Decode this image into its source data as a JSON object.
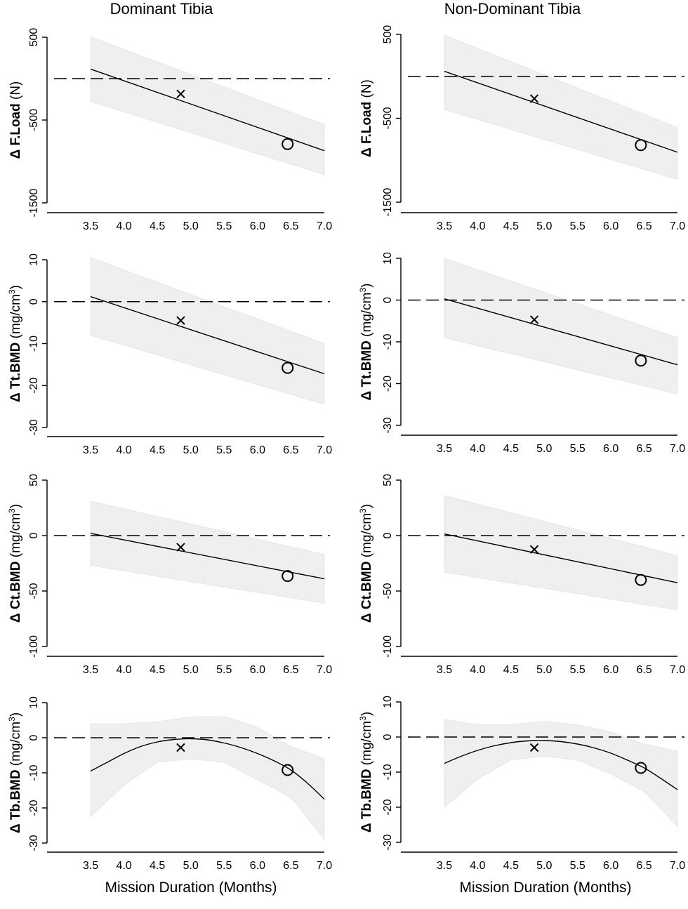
{
  "column_titles": [
    "Dominant Tibia",
    "Non-Dominant Tibia"
  ],
  "x_axis_label": "Mission Duration (Months)",
  "chart_data": [
    {
      "type": "line",
      "row": 0,
      "col": 0,
      "column": "Dominant Tibia",
      "ylabel_prefix": "Δ ",
      "ylabel_bold": "F.Load",
      "ylabel_unit": " (N)",
      "ylabel_sup": "",
      "xlim": [
        3.5,
        7.0
      ],
      "xticks": [
        "3.5",
        "4.0",
        "4.5",
        "5.0",
        "5.5",
        "6.0",
        "6.5",
        "7.0"
      ],
      "ylim": [
        -1500,
        500
      ],
      "yticks": [
        500,
        -500,
        -1500
      ],
      "yticklabels": [
        "500",
        "-500",
        "-1500"
      ],
      "reference_line_y": 0,
      "fit": {
        "shape": "linear",
        "x": [
          3.5,
          7.0
        ],
        "y": [
          115,
          -870
        ]
      },
      "band": {
        "x": [
          3.5,
          7.0
        ],
        "upper": [
          505,
          -555
        ],
        "lower": [
          -275,
          -1160
        ]
      },
      "points": [
        {
          "marker": "x",
          "x": 4.85,
          "y": -185
        },
        {
          "marker": "o",
          "x": 6.45,
          "y": -790
        }
      ]
    },
    {
      "type": "line",
      "row": 0,
      "col": 1,
      "column": "Non-Dominant Tibia",
      "ylabel_prefix": "Δ ",
      "ylabel_bold": "F.Load",
      "ylabel_unit": " (N)",
      "ylabel_sup": "",
      "xlim": [
        3.5,
        7.0
      ],
      "xticks": [
        "3.5",
        "4.0",
        "4.5",
        "5.0",
        "5.5",
        "6.0",
        "6.5",
        "7.0"
      ],
      "ylim": [
        -1500,
        500
      ],
      "yticks": [
        500,
        -500,
        -1500
      ],
      "yticklabels": [
        "500",
        "-500",
        "-1500"
      ],
      "reference_line_y": 0,
      "fit": {
        "shape": "linear",
        "x": [
          3.5,
          7.0
        ],
        "y": [
          60,
          -905
        ]
      },
      "band": {
        "x": [
          3.5,
          7.0
        ],
        "upper": [
          490,
          -610
        ],
        "lower": [
          -395,
          -1230
        ]
      },
      "points": [
        {
          "marker": "x",
          "x": 4.85,
          "y": -265
        },
        {
          "marker": "o",
          "x": 6.45,
          "y": -820
        }
      ]
    },
    {
      "type": "line",
      "row": 1,
      "col": 0,
      "column": "Dominant Tibia",
      "ylabel_prefix": "Δ ",
      "ylabel_bold": "Tt.BMD",
      "ylabel_unit": " (mg/cm",
      "ylabel_sup": "3",
      "xlim": [
        3.5,
        7.0
      ],
      "xticks": [
        "3.5",
        "4.0",
        "4.5",
        "5.0",
        "5.5",
        "6.0",
        "6.5",
        "7.0"
      ],
      "ylim": [
        -30,
        10
      ],
      "yticks": [
        10,
        0,
        -10,
        -20,
        -30
      ],
      "yticklabels": [
        "10",
        "0",
        "-10",
        "-20",
        "-30"
      ],
      "reference_line_y": 0,
      "fit": {
        "shape": "linear",
        "x": [
          3.5,
          7.0
        ],
        "y": [
          1.2,
          -17.2
        ]
      },
      "band": {
        "x": [
          3.5,
          7.0
        ],
        "upper": [
          10.5,
          -10.0
        ],
        "lower": [
          -8.0,
          -24.5
        ]
      },
      "points": [
        {
          "marker": "x",
          "x": 4.85,
          "y": -4.5
        },
        {
          "marker": "o",
          "x": 6.45,
          "y": -15.8
        }
      ]
    },
    {
      "type": "line",
      "row": 1,
      "col": 1,
      "column": "Non-Dominant Tibia",
      "ylabel_prefix": "Δ ",
      "ylabel_bold": "Tt.BMD",
      "ylabel_unit": " (mg/cm",
      "ylabel_sup": "3",
      "xlim": [
        3.5,
        7.0
      ],
      "xticks": [
        "3.5",
        "4.0",
        "4.5",
        "5.0",
        "5.5",
        "6.0",
        "6.5",
        "7.0"
      ],
      "ylim": [
        -30,
        10
      ],
      "yticks": [
        10,
        0,
        -10,
        -20,
        -30
      ],
      "yticklabels": [
        "10",
        "0",
        "-10",
        "-20",
        "-30"
      ],
      "reference_line_y": 0,
      "fit": {
        "shape": "linear",
        "x": [
          3.5,
          7.0
        ],
        "y": [
          0.3,
          -15.5
        ]
      },
      "band": {
        "x": [
          3.5,
          7.0
        ],
        "upper": [
          10.0,
          -9.0
        ],
        "lower": [
          -9.0,
          -22.5
        ]
      },
      "points": [
        {
          "marker": "x",
          "x": 4.85,
          "y": -4.7
        },
        {
          "marker": "o",
          "x": 6.45,
          "y": -14.5
        }
      ]
    },
    {
      "type": "line",
      "row": 2,
      "col": 0,
      "column": "Dominant Tibia",
      "ylabel_prefix": "Δ ",
      "ylabel_bold": "Ct.BMD",
      "ylabel_unit": " (mg/cm",
      "ylabel_sup": "3",
      "xlim": [
        3.5,
        7.0
      ],
      "xticks": [
        "3.5",
        "4.0",
        "4.5",
        "5.0",
        "5.5",
        "6.0",
        "6.5",
        "7.0"
      ],
      "ylim": [
        -100,
        50
      ],
      "yticks": [
        50,
        0,
        -50,
        -100
      ],
      "yticklabels": [
        "50",
        "0",
        "-50",
        "-100"
      ],
      "reference_line_y": 0,
      "fit": {
        "shape": "linear",
        "x": [
          3.5,
          7.0
        ],
        "y": [
          2.0,
          -39.0
        ]
      },
      "band": {
        "x": [
          3.5,
          7.0
        ],
        "upper": [
          31.0,
          -17.0
        ],
        "lower": [
          -27.0,
          -61.0
        ]
      },
      "points": [
        {
          "marker": "x",
          "x": 4.85,
          "y": -10.5
        },
        {
          "marker": "o",
          "x": 6.45,
          "y": -36.5
        }
      ]
    },
    {
      "type": "line",
      "row": 2,
      "col": 1,
      "column": "Non-Dominant Tibia",
      "ylabel_prefix": "Δ ",
      "ylabel_bold": "Ct.BMD",
      "ylabel_unit": " (mg/cm",
      "ylabel_sup": "3",
      "xlim": [
        3.5,
        7.0
      ],
      "xticks": [
        "3.5",
        "4.0",
        "4.5",
        "5.0",
        "5.5",
        "6.0",
        "6.5",
        "7.0"
      ],
      "ylim": [
        -100,
        50
      ],
      "yticks": [
        50,
        0,
        -50,
        -100
      ],
      "yticklabels": [
        "50",
        "0",
        "-50",
        "-100"
      ],
      "reference_line_y": 0,
      "fit": {
        "shape": "linear",
        "x": [
          3.5,
          7.0
        ],
        "y": [
          1.5,
          -42.5
        ]
      },
      "band": {
        "x": [
          3.5,
          7.0
        ],
        "upper": [
          36.0,
          -18.0
        ],
        "lower": [
          -33.0,
          -67.0
        ]
      },
      "points": [
        {
          "marker": "x",
          "x": 4.85,
          "y": -12.5
        },
        {
          "marker": "o",
          "x": 6.45,
          "y": -40.0
        }
      ]
    },
    {
      "type": "line",
      "row": 3,
      "col": 0,
      "column": "Dominant Tibia",
      "ylabel_prefix": "Δ ",
      "ylabel_bold": "Tb.BMD",
      "ylabel_unit": " (mg/cm",
      "ylabel_sup": "3",
      "xlim": [
        3.5,
        7.0
      ],
      "xticks": [
        "3.5",
        "4.0",
        "4.5",
        "5.0",
        "5.5",
        "6.0",
        "6.5",
        "7.0"
      ],
      "ylim": [
        -30,
        10
      ],
      "yticks": [
        10,
        0,
        -10,
        -20,
        -30
      ],
      "yticklabels": [
        "10",
        "0",
        "-10",
        "-20",
        "-30"
      ],
      "reference_line_y": 0,
      "fit": {
        "shape": "curve",
        "x": [
          3.5,
          3.75,
          4.0,
          4.25,
          4.5,
          4.75,
          5.0,
          5.25,
          5.5,
          5.75,
          6.0,
          6.25,
          6.5,
          6.75,
          7.0
        ],
        "y": [
          -9.5,
          -7.0,
          -4.5,
          -2.5,
          -1.2,
          -0.5,
          -0.3,
          -0.6,
          -1.5,
          -2.8,
          -4.5,
          -6.6,
          -9.2,
          -13.0,
          -17.5
        ]
      },
      "band": {
        "x": [
          3.5,
          4.0,
          4.5,
          5.0,
          5.5,
          6.0,
          6.5,
          7.0
        ],
        "upper": [
          4.0,
          4.0,
          4.5,
          6.0,
          6.0,
          3.0,
          -2.5,
          -6.0
        ],
        "lower": [
          -22.5,
          -13.5,
          -7.0,
          -6.0,
          -7.0,
          -12.0,
          -17.0,
          -29.0
        ]
      },
      "points": [
        {
          "marker": "x",
          "x": 4.85,
          "y": -2.8
        },
        {
          "marker": "o",
          "x": 6.45,
          "y": -9.2
        }
      ]
    },
    {
      "type": "line",
      "row": 3,
      "col": 1,
      "column": "Non-Dominant Tibia",
      "ylabel_prefix": "Δ ",
      "ylabel_bold": "Tb.BMD",
      "ylabel_unit": " (mg/cm",
      "ylabel_sup": "3",
      "xlim": [
        3.5,
        7.0
      ],
      "xticks": [
        "3.5",
        "4.0",
        "4.5",
        "5.0",
        "5.5",
        "6.0",
        "6.5",
        "7.0"
      ],
      "ylim": [
        -30,
        10
      ],
      "yticks": [
        10,
        0,
        -10,
        -20,
        -30
      ],
      "yticklabels": [
        "10",
        "0",
        "-10",
        "-20",
        "-30"
      ],
      "reference_line_y": 0,
      "fit": {
        "shape": "curve",
        "x": [
          3.5,
          3.75,
          4.0,
          4.25,
          4.5,
          4.75,
          5.0,
          5.25,
          5.5,
          5.75,
          6.0,
          6.25,
          6.5,
          6.75,
          7.0
        ],
        "y": [
          -7.5,
          -5.5,
          -3.8,
          -2.5,
          -1.6,
          -1.1,
          -1.0,
          -1.3,
          -2.0,
          -3.1,
          -4.6,
          -6.6,
          -8.8,
          -11.8,
          -15.0
        ]
      },
      "band": {
        "x": [
          3.5,
          4.0,
          4.5,
          5.0,
          5.5,
          6.0,
          6.5,
          7.0
        ],
        "upper": [
          5.0,
          3.5,
          3.5,
          4.5,
          3.5,
          1.5,
          -2.0,
          -4.0
        ],
        "lower": [
          -20.0,
          -12.0,
          -6.5,
          -5.5,
          -6.5,
          -10.5,
          -15.5,
          -25.5
        ]
      },
      "points": [
        {
          "marker": "x",
          "x": 4.85,
          "y": -3.0
        },
        {
          "marker": "o",
          "x": 6.45,
          "y": -8.8
        }
      ]
    }
  ]
}
